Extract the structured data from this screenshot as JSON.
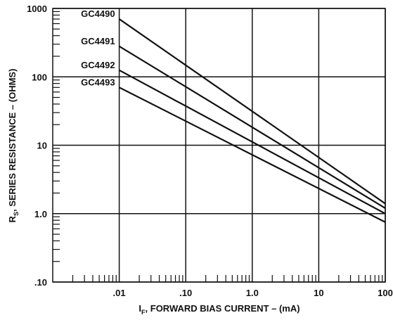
{
  "chart_data": {
    "type": "line",
    "x_scale": "log",
    "y_scale": "log",
    "xlim": [
      0.001,
      100
    ],
    "ylim": [
      0.1,
      1000
    ],
    "grid": true,
    "x_tick_labels": [
      ".01",
      ".10",
      "1.0",
      "10",
      "100"
    ],
    "x_tick_values": [
      0.01,
      0.1,
      1,
      10,
      100
    ],
    "y_tick_labels": [
      ".10",
      "1.0",
      "10",
      "100",
      "1000"
    ],
    "y_tick_values": [
      0.1,
      1,
      10,
      100,
      1000
    ],
    "xlabel": {
      "main": "I",
      "sub": "F",
      "rest": ", FORWARD BIAS CURRENT – (mA)"
    },
    "ylabel": {
      "main": "R",
      "sub": "S",
      "rest": ", SERIES RESISTANCE – (OHMS)"
    },
    "series": [
      {
        "name": "GC4490",
        "x": [
          0.01,
          100
        ],
        "y": [
          700,
          1.4
        ]
      },
      {
        "name": "GC4491",
        "x": [
          0.01,
          100
        ],
        "y": [
          280,
          1.2
        ]
      },
      {
        "name": "GC4492",
        "x": [
          0.01,
          100
        ],
        "y": [
          125,
          1.0
        ]
      },
      {
        "name": "GC4493",
        "x": [
          0.01,
          100
        ],
        "y": [
          70,
          0.75
        ]
      }
    ]
  }
}
